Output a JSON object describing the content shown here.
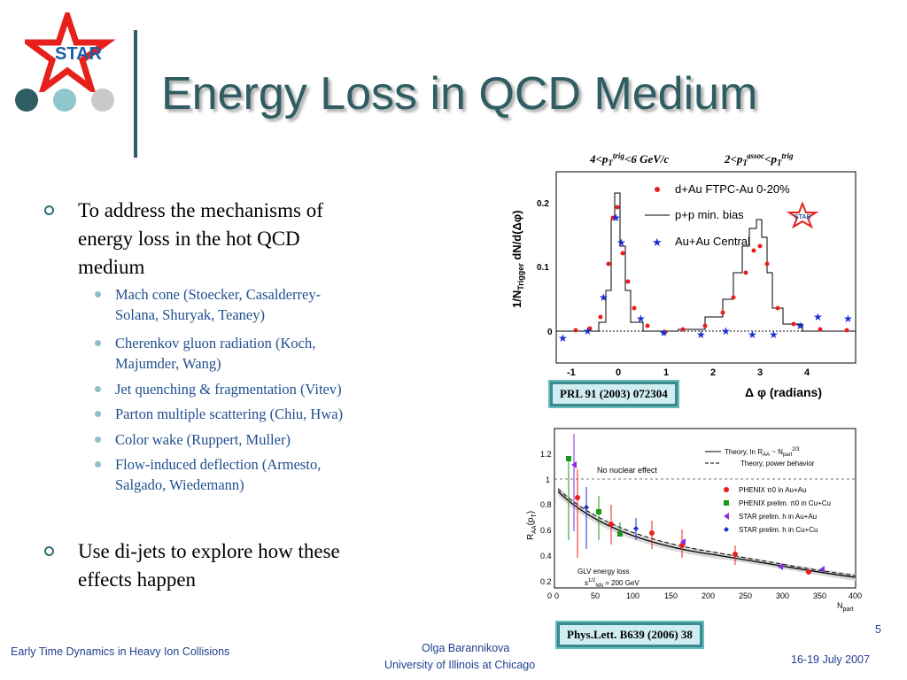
{
  "header": {
    "logo_text": "STAR",
    "title": "Energy Loss in QCD Medium",
    "dot_colors": [
      "#2f5d62",
      "#8fc6cc",
      "#c9c9c9"
    ]
  },
  "bullets": {
    "main1": [
      "To address the mechanisms of",
      "energy loss in the hot QCD",
      "medium"
    ],
    "sub": [
      [
        "Mach cone  (Stoecker, Casalderrey-",
        "Solana, Shuryak, Teaney)"
      ],
      [
        "Cherenkov gluon radiation (Koch,",
        "Majumder, Wang)"
      ],
      [
        "Jet quenching & fragmentation (Vitev)"
      ],
      [
        "Parton multiple scattering (Chiu, Hwa)"
      ],
      [
        "Color wake (Ruppert, Muller)"
      ],
      [
        "Flow-induced deflection (Armesto,",
        "Salgado, Wiedemann)"
      ]
    ],
    "main2": [
      "Use di-jets to explore how these",
      "effects happen"
    ]
  },
  "figure1": {
    "cut_trig": "4<p",
    "cut_trig_sub": "T",
    "cut_trig_sup": "trig",
    "cut_trig_end": "<6 GeV/c",
    "cut_assoc": "2<p",
    "cut_assoc_sub": "T",
    "cut_assoc_sup": "assoc",
    "cut_assoc_mid": "<p",
    "cut_assoc_sub2": "T",
    "cut_assoc_sup2": "trig",
    "ylabel": "1/N",
    "ylabel_sub": "Trigger",
    "ylabel_end": " dN/d(Δφ)",
    "xlabel": "Δ φ (radians)",
    "y_ticks": [
      "0.2",
      "0.1",
      "0"
    ],
    "x_ticks": [
      "-1",
      "0",
      "1",
      "2",
      "3",
      "4"
    ],
    "legend": [
      "d+Au FTPC-Au 0-20%",
      "p+p min. bias",
      "Au+Au Central"
    ],
    "star_label": "STAR",
    "citation": "PRL 91 (2003) 072304",
    "colors": {
      "dau": "#e8201c",
      "auau": "#1a2fd0",
      "pp": "#000000"
    }
  },
  "figure2": {
    "ylabel": "R",
    "ylabel_sub": "AA",
    "ylabel_end": "(p",
    "ylabel_sub2": "T",
    "ylabel_close": ")",
    "xlabel": "N",
    "xlabel_sub": "part",
    "y_ticks": [
      "1.2",
      "1",
      "0.8",
      "0.6",
      "0.4",
      "0.2",
      "0"
    ],
    "x_ticks": [
      "0",
      "50",
      "100",
      "150",
      "200",
      "250",
      "300",
      "350",
      "400"
    ],
    "no_effect_label": "No nuclear effect",
    "glv_label": "GLV energy loss",
    "sqrt_label": "s",
    "sqrt_sup": "1/2",
    "sqrt_sub": "NN",
    "sqrt_end": " = 200 GeV",
    "theory_legend": [
      "Theory, ln R",
      "Theory, power behavior"
    ],
    "theory1_sub": "AA",
    "theory1_mid": " ~ N",
    "theory1_sub2": "part",
    "theory1_sup": "2/3",
    "legend": [
      "PHENIX π0 in Au+Au",
      "PHENIX prelim. π0 in Cu+Cu",
      "STAR prelim. h in Au+Au",
      "STAR prelim. h in Cu+Cu"
    ],
    "citation": "Phys.Lett. B639 (2006) 38",
    "colors": {
      "phenix_auau": "#e8201c",
      "phenix_cucu": "#1a9a1a",
      "star_auau": "#8a2be2",
      "star_cucu": "#1a2fd0"
    }
  },
  "footer": {
    "left": "Early Time Dynamics in Heavy Ion Collisions",
    "center1": "Olga Barannikova",
    "center2": "University of Illinois at Chicago",
    "right": "16-19 July 2007",
    "page": "5"
  }
}
